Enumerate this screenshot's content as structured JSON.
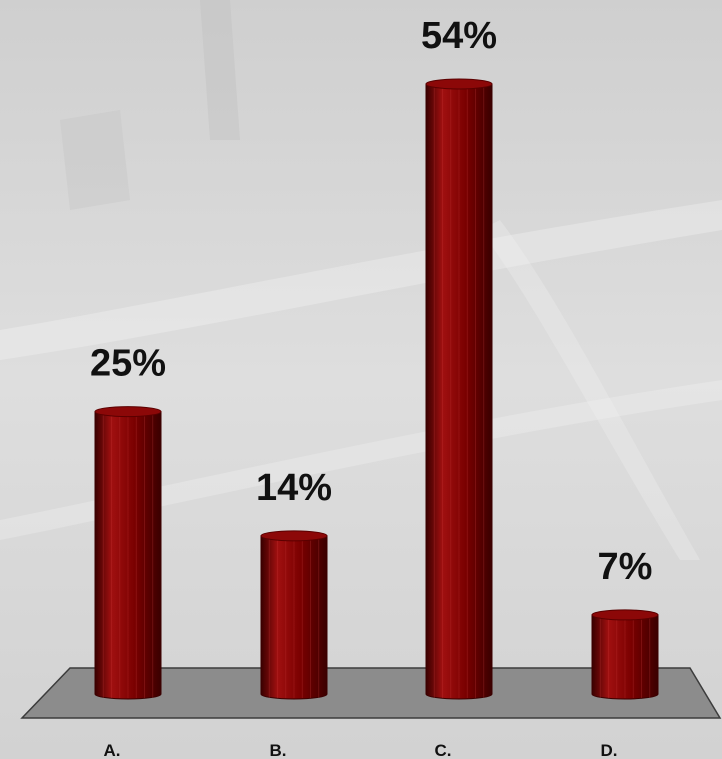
{
  "chart_data": {
    "type": "bar",
    "style": "3d-cylinder",
    "categories": [
      "A.",
      "B.",
      "C.",
      "D."
    ],
    "values": [
      25,
      14,
      54,
      7
    ],
    "data_labels": [
      "25%",
      "14%",
      "54%",
      "7%"
    ],
    "unit": "%",
    "ylim": [
      0,
      54
    ],
    "grid": false,
    "legend": "none",
    "colors": {
      "bar": "#7a0000",
      "bar_highlight": "#a01010",
      "bar_shadow": "#3a0000",
      "bar_top": "#8c0808",
      "floor": "#8c8c8c",
      "floor_edge": "#3c3c3c",
      "background": "#d9d9d9"
    }
  }
}
